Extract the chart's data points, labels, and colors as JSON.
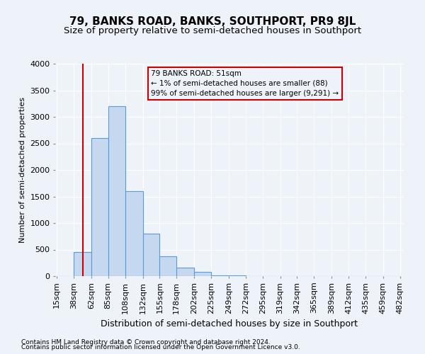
{
  "title": "79, BANKS ROAD, BANKS, SOUTHPORT, PR9 8JL",
  "subtitle": "Size of property relative to semi-detached houses in Southport",
  "xlabel": "Distribution of semi-detached houses by size in Southport",
  "ylabel": "Number of semi-detached properties",
  "footer_line1": "Contains HM Land Registry data © Crown copyright and database right 2024.",
  "footer_line2": "Contains public sector information licensed under the Open Government Licence v3.0.",
  "annotation_line1": "79 BANKS ROAD: 51sqm",
  "annotation_line2": "← 1% of semi-detached houses are smaller (88)",
  "annotation_line3": "99% of semi-detached houses are larger (9,291) →",
  "bar_edges": [
    15,
    38,
    62,
    85,
    108,
    132,
    155,
    178,
    202,
    225,
    249,
    272,
    295,
    319,
    342,
    365,
    389,
    412,
    435,
    459,
    482
  ],
  "bar_heights": [
    5,
    450,
    2600,
    3200,
    1600,
    800,
    380,
    160,
    75,
    10,
    8,
    5,
    5,
    5,
    5,
    5,
    5,
    5,
    5,
    5
  ],
  "bar_color": "#c5d8f0",
  "bar_edge_color": "#5b9bd5",
  "vline_x": 51,
  "vline_color": "#cc0000",
  "annotation_box_color": "#cc0000",
  "ylim": [
    0,
    4000
  ],
  "yticks": [
    0,
    500,
    1000,
    1500,
    2000,
    2500,
    3000,
    3500,
    4000
  ],
  "bg_color": "#eef2f9",
  "grid_color": "#ffffff",
  "title_fontsize": 11,
  "subtitle_fontsize": 9.5,
  "ylabel_fontsize": 8,
  "xlabel_fontsize": 9,
  "tick_fontsize": 8,
  "footer_fontsize": 6.5
}
